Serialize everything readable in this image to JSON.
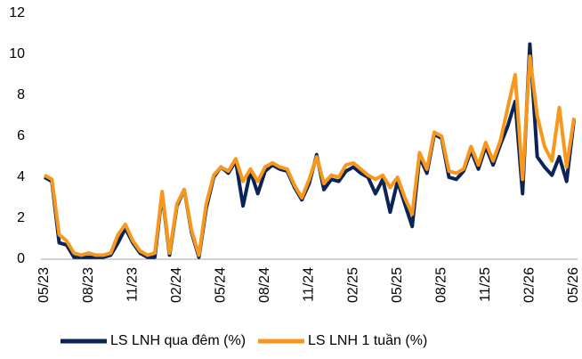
{
  "chart_data": {
    "type": "line",
    "categories": [
      "05/23",
      null,
      null,
      null,
      null,
      null,
      "08/23",
      null,
      null,
      null,
      null,
      null,
      "11/23",
      null,
      null,
      null,
      null,
      null,
      "02/24",
      null,
      null,
      null,
      null,
      null,
      "05/24",
      null,
      null,
      null,
      null,
      null,
      "08/24",
      null,
      null,
      null,
      null,
      null,
      "11/24",
      null,
      null,
      null,
      null,
      null,
      "02/25",
      null,
      null,
      null,
      null,
      null,
      "05/25",
      null,
      null,
      null,
      null,
      null,
      "08/25",
      null,
      null,
      null,
      null,
      null,
      "11/25",
      null,
      null,
      null,
      null,
      null,
      "02/26",
      null,
      null,
      null,
      null,
      null,
      "05/26"
    ],
    "series": [
      {
        "name": "LS LNH qua đêm (%)",
        "color": "#0b2457",
        "values": [
          4.0,
          3.8,
          0.8,
          0.7,
          0.1,
          0.1,
          0.1,
          0.1,
          0.1,
          0.2,
          0.8,
          1.5,
          0.8,
          0.3,
          0.1,
          0.1,
          3.2,
          0.2,
          2.6,
          3.4,
          1.3,
          0.1,
          2.5,
          4.0,
          4.5,
          4.2,
          4.8,
          2.6,
          4.3,
          3.2,
          4.3,
          4.6,
          4.4,
          4.3,
          3.5,
          2.9,
          3.7,
          5.1,
          3.4,
          3.9,
          3.8,
          4.3,
          4.5,
          4.2,
          4.0,
          3.2,
          3.9,
          2.3,
          3.8,
          2.7,
          1.6,
          5.0,
          4.2,
          6.1,
          5.9,
          4.0,
          3.9,
          4.3,
          5.3,
          4.4,
          5.5,
          4.6,
          5.6,
          6.5,
          7.7,
          3.2,
          10.5,
          5.0,
          4.5,
          4.1,
          5.0,
          3.8,
          6.8
        ]
      },
      {
        "name": "LS LNH 1 tuần (%)",
        "color": "#f7981d",
        "values": [
          4.1,
          3.9,
          1.2,
          0.9,
          0.3,
          0.2,
          0.3,
          0.2,
          0.2,
          0.3,
          1.2,
          1.7,
          0.9,
          0.4,
          0.2,
          0.3,
          3.3,
          0.3,
          2.7,
          3.4,
          1.4,
          0.2,
          2.7,
          4.1,
          4.5,
          4.3,
          4.9,
          3.8,
          4.4,
          3.8,
          4.5,
          4.7,
          4.5,
          4.4,
          3.6,
          3.0,
          3.9,
          5.0,
          3.7,
          4.1,
          4.0,
          4.6,
          4.7,
          4.4,
          4.1,
          3.9,
          4.1,
          3.5,
          4.0,
          3.0,
          2.2,
          5.2,
          4.4,
          6.2,
          6.0,
          4.3,
          4.2,
          4.4,
          5.5,
          4.6,
          5.7,
          4.8,
          5.8,
          7.4,
          9.0,
          3.9,
          9.9,
          7.0,
          5.5,
          4.8,
          7.4,
          4.5,
          6.9
        ]
      }
    ],
    "ylim": [
      0,
      12
    ],
    "yticks": [
      0,
      2,
      4,
      6,
      8,
      10,
      12
    ],
    "grid": false,
    "legend": "bottom"
  }
}
